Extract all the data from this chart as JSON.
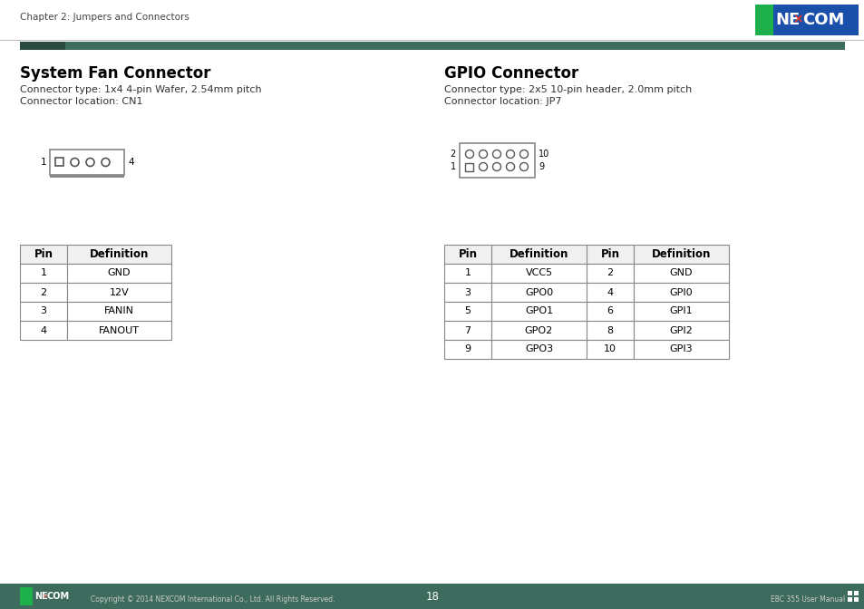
{
  "page_title": "Chapter 2: Jumpers and Connectors",
  "page_number": "18",
  "footer_left": "Copyright © 2014 NEXCOM International Co., Ltd. All Rights Reserved.",
  "footer_right": "EBC 355 User Manual",
  "header_bar_color": "#3d6b5e",
  "section1_title": "System Fan Connector",
  "section1_line1": "Connector type: 1x4 4-pin Wafer, 2.54mm pitch",
  "section1_line2": "Connector location: CN1",
  "section2_title": "GPIO Connector",
  "section2_line1": "Connector type: 2x5 10-pin header, 2.0mm pitch",
  "section2_line2": "Connector location: JP7",
  "fan_table_headers": [
    "Pin",
    "Definition"
  ],
  "fan_table_data": [
    [
      "1",
      "GND"
    ],
    [
      "2",
      "12V"
    ],
    [
      "3",
      "FANIN"
    ],
    [
      "4",
      "FANOUT"
    ]
  ],
  "gpio_table_headers": [
    "Pin",
    "Definition",
    "Pin",
    "Definition"
  ],
  "gpio_table_data": [
    [
      "1",
      "VCC5",
      "2",
      "GND"
    ],
    [
      "3",
      "GPO0",
      "4",
      "GPI0"
    ],
    [
      "5",
      "GPO1",
      "6",
      "GPI1"
    ],
    [
      "7",
      "GPO2",
      "8",
      "GPI2"
    ],
    [
      "9",
      "GPO3",
      "10",
      "GPI3"
    ]
  ],
  "bg_color": "#ffffff",
  "nexcom_green": "#1db04a",
  "nexcom_blue": "#1a4faa",
  "nexcom_red": "#e63c28",
  "teal_dark": "#3d6b5e",
  "teal_accent": "#2a4a3e"
}
